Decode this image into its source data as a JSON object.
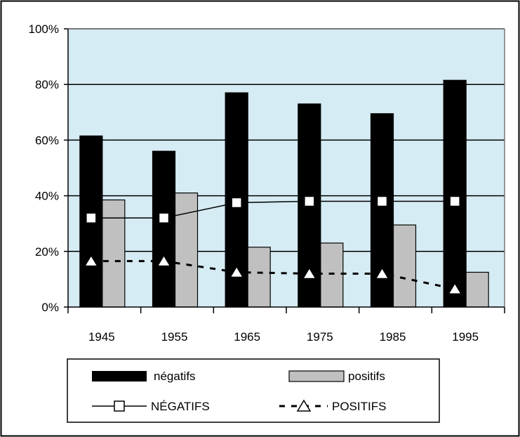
{
  "chart_data": {
    "type": "bar",
    "categories": [
      "1945",
      "1955",
      "1965",
      "1975",
      "1985",
      "1995"
    ],
    "bar_series": [
      {
        "name": "négatifs",
        "values": [
          61.5,
          56,
          77,
          73,
          69.5,
          81.5
        ],
        "color": "#000000"
      },
      {
        "name": "positifs",
        "values": [
          38.5,
          41,
          21.5,
          23,
          29.5,
          12.5
        ],
        "color": "#c0c0c0"
      }
    ],
    "line_series": [
      {
        "name": "NÉGATIFS",
        "values": [
          32,
          32,
          37.5,
          38,
          38,
          38
        ],
        "marker": "square",
        "line_style": "solid"
      },
      {
        "name": "POSITIFS",
        "values": [
          16.5,
          16.5,
          12.5,
          12,
          12,
          6.5
        ],
        "marker": "triangle",
        "line_style": "dashed"
      }
    ],
    "y_ticks": [
      0,
      20,
      40,
      60,
      80,
      100
    ],
    "y_tick_labels": [
      "0%",
      "20%",
      "40%",
      "60%",
      "80%",
      "100%"
    ],
    "ylim": [
      0,
      100
    ],
    "grid": true,
    "plot_background": "#d6ecf4",
    "legend_position": "bottom",
    "legend_order": [
      "négatifs",
      "positifs",
      "NÉGATIFS",
      "POSITIFS"
    ]
  }
}
